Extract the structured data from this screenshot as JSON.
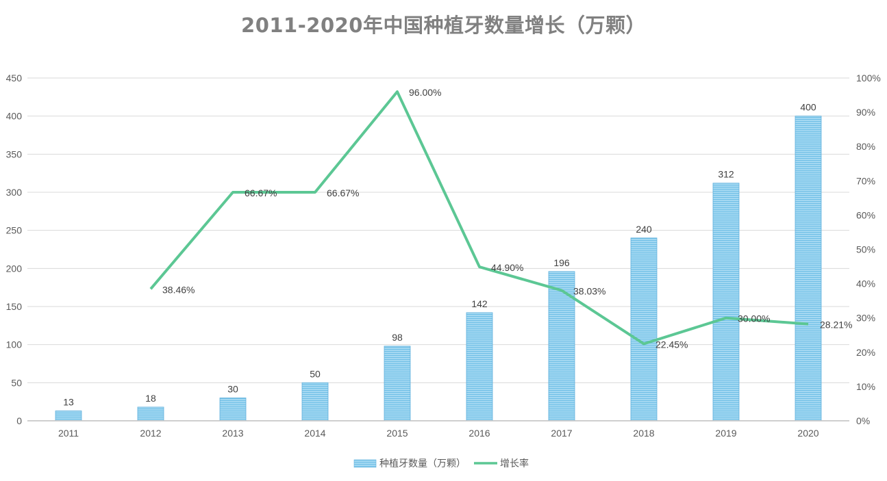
{
  "chart_data": {
    "type": "bar+line",
    "title": "2011-2020年中国种植牙数量增长（万颗）",
    "categories": [
      "2011",
      "2012",
      "2013",
      "2014",
      "2015",
      "2016",
      "2017",
      "2018",
      "2019",
      "2020"
    ],
    "series": [
      {
        "name": "种植牙数量（万颗）",
        "type": "bar",
        "axis": "left",
        "values": [
          13,
          18,
          30,
          50,
          98,
          142,
          196,
          240,
          312,
          400
        ],
        "labels": [
          "13",
          "18",
          "30",
          "50",
          "98",
          "142",
          "196",
          "240",
          "312",
          "400"
        ],
        "color": "#8dcdee",
        "border_color": "#5fb0dc"
      },
      {
        "name": "增长率",
        "type": "line",
        "axis": "right",
        "values": [
          null,
          38.46,
          66.67,
          66.67,
          96.0,
          44.9,
          38.03,
          22.45,
          30.0,
          28.21
        ],
        "labels": [
          "",
          "38.46%",
          "66.67%",
          "66.67%",
          "96.00%",
          "44.90%",
          "38.03%",
          "22.45%",
          "30.00%",
          "28.21%"
        ],
        "color": "#5cc794"
      }
    ],
    "y_left": {
      "range": [
        0,
        450
      ],
      "ticks": [
        "0",
        "50",
        "100",
        "150",
        "200",
        "250",
        "300",
        "350",
        "400",
        "450"
      ]
    },
    "y_right": {
      "range": [
        0,
        100
      ],
      "ticks": [
        "0%",
        "10%",
        "20%",
        "30%",
        "40%",
        "50%",
        "60%",
        "70%",
        "80%",
        "90%",
        "100%"
      ]
    },
    "grid": true,
    "legend_position": "bottom"
  }
}
